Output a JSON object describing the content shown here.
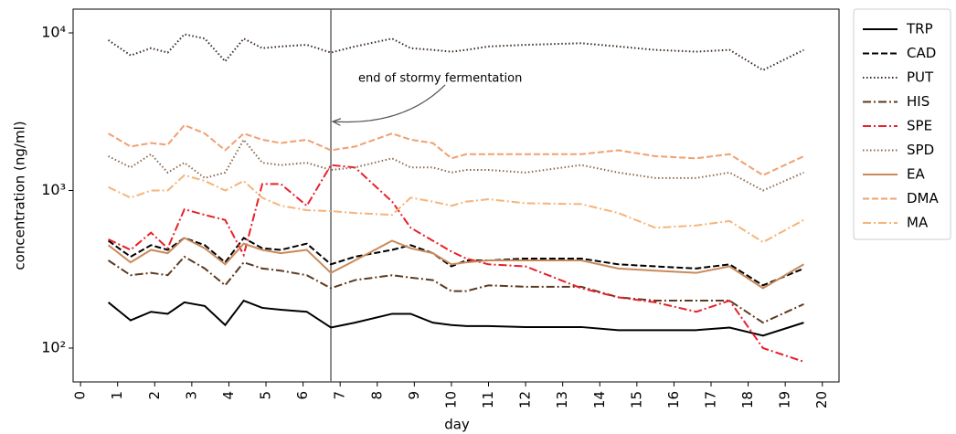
{
  "chart_data": {
    "type": "line",
    "xlabel": "day",
    "ylabel": "concentration (ng/ml)",
    "log_y": true,
    "legend": "outside right",
    "x": [
      0.75,
      1.35,
      1.9,
      2.35,
      2.8,
      3.35,
      3.9,
      4.4,
      4.9,
      5.4,
      6.1,
      6.75,
      7.4,
      8.4,
      8.9,
      9.5,
      10,
      10.4,
      11,
      12,
      13.5,
      14.5,
      15.5,
      16.6,
      17.5,
      18.4,
      19.5
    ],
    "xlim": [
      -0.2,
      20.45
    ],
    "xticks": [
      0,
      1,
      2,
      3,
      4,
      5,
      6,
      7,
      8,
      9,
      10,
      11,
      12,
      13,
      14,
      15,
      16,
      17,
      18,
      19,
      20
    ],
    "ylim": [
      61,
      14150
    ],
    "yticks": [
      {
        "value": 100,
        "label": "10²"
      },
      {
        "value": 1000,
        "label": "10³"
      },
      {
        "value": 10000,
        "label": "10⁴"
      }
    ],
    "vline": 6.75,
    "annotation": {
      "text": "end of stormy fermentation",
      "x": 6.75,
      "y": 2740
    },
    "series": [
      {
        "name": "TRP",
        "color": "#000000",
        "dash": "solid",
        "values": [
          195,
          150,
          170,
          165,
          195,
          185,
          140,
          200,
          180,
          175,
          170,
          135,
          145,
          165,
          165,
          145,
          140,
          138,
          138,
          136,
          136,
          130,
          130,
          130,
          135,
          120,
          145
        ]
      },
      {
        "name": "CAD",
        "color": "#000000",
        "dash": "dashed",
        "values": [
          480,
          380,
          450,
          420,
          500,
          450,
          350,
          500,
          430,
          420,
          460,
          340,
          380,
          420,
          450,
          400,
          330,
          360,
          360,
          370,
          370,
          340,
          330,
          320,
          340,
          250,
          320
        ]
      },
      {
        "name": "PUT",
        "color": "#3a2a20",
        "dash": "dotted",
        "values": [
          9000,
          7200,
          8000,
          7500,
          9800,
          9200,
          6600,
          9200,
          8000,
          8200,
          8400,
          7500,
          8200,
          9200,
          8000,
          7800,
          7600,
          7800,
          8200,
          8400,
          8600,
          8200,
          7800,
          7600,
          7800,
          5800,
          7800
        ]
      },
      {
        "name": "HIS",
        "color": "#5c3a21",
        "dash": "dashdot",
        "values": [
          360,
          290,
          300,
          290,
          380,
          320,
          250,
          350,
          320,
          310,
          290,
          240,
          270,
          290,
          280,
          270,
          230,
          230,
          250,
          245,
          245,
          210,
          200,
          200,
          200,
          145,
          190
        ]
      },
      {
        "name": "SPE",
        "color": "#e8202a",
        "dash": "dashdot",
        "values": [
          490,
          420,
          540,
          430,
          760,
          700,
          650,
          390,
          1100,
          1100,
          800,
          1450,
          1400,
          850,
          580,
          480,
          410,
          370,
          340,
          330,
          240,
          210,
          195,
          170,
          200,
          100,
          82
        ]
      },
      {
        "name": "SPD",
        "color": "#8b6a50",
        "dash": "dotted",
        "values": [
          1650,
          1400,
          1700,
          1300,
          1500,
          1200,
          1300,
          2100,
          1500,
          1450,
          1500,
          1350,
          1400,
          1600,
          1400,
          1400,
          1300,
          1350,
          1350,
          1300,
          1450,
          1300,
          1200,
          1200,
          1300,
          1000,
          1300
        ]
      },
      {
        "name": "EA",
        "color": "#c98a5a",
        "dash": "solid",
        "values": [
          450,
          350,
          420,
          400,
          500,
          430,
          340,
          460,
          420,
          400,
          420,
          300,
          360,
          480,
          430,
          400,
          340,
          350,
          360,
          360,
          360,
          320,
          310,
          300,
          330,
          240,
          340
        ]
      },
      {
        "name": "DMA",
        "color": "#f0a070",
        "dash": "dashed",
        "values": [
          2300,
          1900,
          2000,
          1950,
          2600,
          2300,
          1800,
          2300,
          2100,
          2000,
          2100,
          1800,
          1900,
          2300,
          2100,
          2000,
          1600,
          1700,
          1700,
          1700,
          1700,
          1800,
          1650,
          1600,
          1700,
          1250,
          1650
        ]
      },
      {
        "name": "MA",
        "color": "#f5b47a",
        "dash": "dashdot",
        "values": [
          1050,
          900,
          1000,
          1000,
          1250,
          1150,
          1000,
          1150,
          900,
          800,
          750,
          740,
          720,
          700,
          900,
          850,
          800,
          850,
          880,
          830,
          820,
          720,
          580,
          600,
          640,
          470,
          650
        ]
      }
    ]
  }
}
